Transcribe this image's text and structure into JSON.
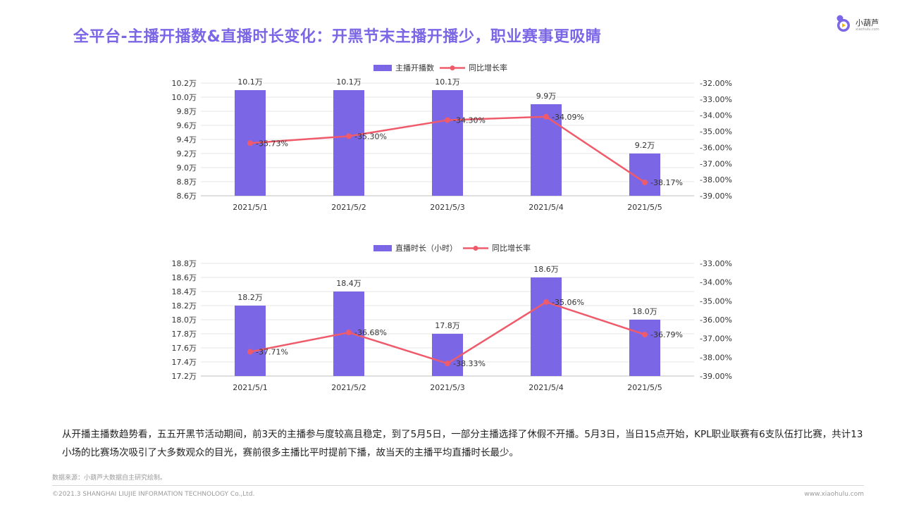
{
  "page": {
    "title": "全平台-主播开播数&直播时长变化：开黑节末主播开播少，职业赛事更吸睛",
    "logo_name": "小葫芦",
    "logo_domain": "xiaohulu.com",
    "description": "从开播主播数趋势看，五五开黑节活动期间，前3天的主播参与度较高且稳定，到了5月5日，一部分主播选择了休假不开播。5月3日，当日15点开始，KPL职业联赛有6支队伍打比赛，共计13小场的比赛场次吸引了大多数观众的目光，赛前很多主播比平时提前下播，故当天的主播平均直播时长最少。",
    "source": "数据来源：小葫芦大数据自主研究绘制。",
    "copyright": "©2021.3 SHANGHAI LIUJIE INFORMATION  TECHNOLOGY Co.,Ltd.",
    "website": "www.xiaohulu.com"
  },
  "colors": {
    "bar": "#7b67e6",
    "line": "#ef5b6b",
    "title": "#7b67e6",
    "axis_text": "#333333",
    "grid": "#e6e6e6"
  },
  "chart_data": [
    {
      "type": "bar",
      "categories": [
        "2021/5/1",
        "2021/5/2",
        "2021/5/3",
        "2021/5/4",
        "2021/5/5"
      ],
      "series": [
        {
          "name": "主播开播数",
          "type": "bar",
          "axis": "left",
          "values": [
            10.1,
            10.1,
            10.1,
            9.9,
            9.2
          ],
          "labels": [
            "10.1万",
            "10.1万",
            "10.1万",
            "9.9万",
            "9.2万"
          ],
          "color": "#7b67e6"
        },
        {
          "name": "同比增长率",
          "type": "line",
          "axis": "right",
          "values": [
            -35.73,
            -35.3,
            -34.3,
            -34.09,
            -38.17
          ],
          "labels": [
            "-35.73%",
            "-35.30%",
            "-34.30%",
            "-34.09%",
            "-38.17%"
          ],
          "color": "#ef5b6b"
        }
      ],
      "left_axis": {
        "min": 8.6,
        "max": 10.2,
        "ticks": [
          10.2,
          10.0,
          9.8,
          9.6,
          9.4,
          9.2,
          9.0,
          8.8,
          8.6
        ],
        "tick_labels": [
          "10.2万",
          "10.0万",
          "9.8万",
          "9.6万",
          "9.4万",
          "9.2万",
          "9.0万",
          "8.8万",
          "8.6万"
        ]
      },
      "right_axis": {
        "min": -39,
        "max": -32,
        "ticks": [
          -32,
          -33,
          -34,
          -35,
          -36,
          -37,
          -38,
          -39
        ],
        "tick_labels": [
          "-32.00%",
          "-33.00%",
          "-34.00%",
          "-35.00%",
          "-36.00%",
          "-37.00%",
          "-38.00%",
          "-39.00%"
        ]
      },
      "grid": true,
      "legend_position": "top-center"
    },
    {
      "type": "bar",
      "categories": [
        "2021/5/1",
        "2021/5/2",
        "2021/5/3",
        "2021/5/4",
        "2021/5/5"
      ],
      "series": [
        {
          "name": "直播时长（小时）",
          "type": "bar",
          "axis": "left",
          "values": [
            18.2,
            18.4,
            17.8,
            18.6,
            18.0
          ],
          "labels": [
            "18.2万",
            "18.4万",
            "17.8万",
            "18.6万",
            "18.0万"
          ],
          "color": "#7b67e6"
        },
        {
          "name": "同比增长率",
          "type": "line",
          "axis": "right",
          "values": [
            -37.71,
            -36.68,
            -38.33,
            -35.06,
            -36.79
          ],
          "labels": [
            "-37.71%",
            "-36.68%",
            "-38.33%",
            "-35.06%",
            "-36.79%"
          ],
          "color": "#ef5b6b"
        }
      ],
      "left_axis": {
        "min": 17.2,
        "max": 18.8,
        "ticks": [
          18.8,
          18.6,
          18.4,
          18.2,
          18.0,
          17.8,
          17.6,
          17.4,
          17.2
        ],
        "tick_labels": [
          "18.8万",
          "18.6万",
          "18.4万",
          "18.2万",
          "18.0万",
          "17.8万",
          "17.6万",
          "17.4万",
          "17.2万"
        ]
      },
      "right_axis": {
        "min": -39,
        "max": -33,
        "ticks": [
          -33,
          -34,
          -35,
          -36,
          -37,
          -38,
          -39
        ],
        "tick_labels": [
          "-33.00%",
          "-34.00%",
          "-35.00%",
          "-36.00%",
          "-37.00%",
          "-38.00%",
          "-39.00%"
        ]
      },
      "grid": true,
      "legend_position": "top-center"
    }
  ]
}
